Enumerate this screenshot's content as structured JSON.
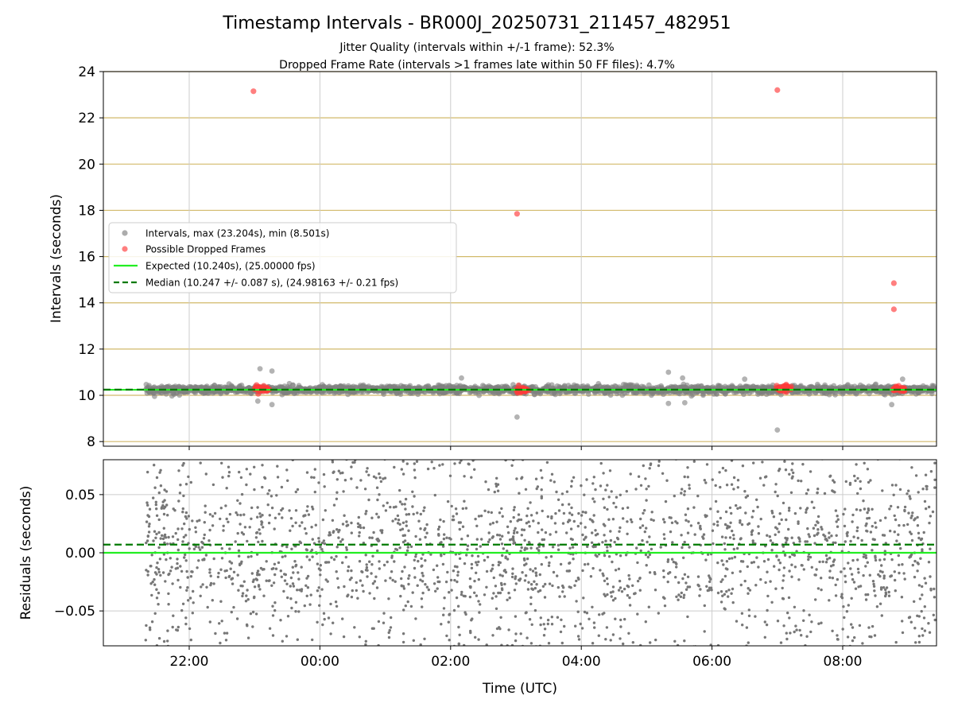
{
  "chart_data": [
    {
      "type": "scatter",
      "title": "Timestamp Intervals - BR000J_20250731_211457_482951",
      "subtitle_lines": [
        "Jitter Quality (intervals within +/-1 frame): 52.3%",
        "Dropped Frame Rate (intervals >1 frames late within 50 FF files): 4.7%"
      ],
      "xlabel": "",
      "ylabel": "Intervals (seconds)",
      "x_ticks": [
        "22:00",
        "00:00",
        "02:00",
        "04:00",
        "06:00",
        "08:00"
      ],
      "y_ticks": [
        "8",
        "10",
        "12",
        "14",
        "16",
        "18",
        "20",
        "22",
        "24"
      ],
      "ylim": [
        7.8,
        24
      ],
      "grid": true,
      "frame_lines_color": "#d2b96a",
      "legend_placement": "center-left",
      "series": [
        {
          "name": "Intervals, max (23.204s), min (8.501s)",
          "color": "#808080",
          "band": {
            "center": 10.245,
            "spread": 0.15,
            "x_range": [
              "21:20",
              "09:25"
            ]
          },
          "outliers": [
            {
              "x": "23:05",
              "y": 11.15
            },
            {
              "x": "23:16",
              "y": 11.05
            },
            {
              "x": "23:03",
              "y": 9.75
            },
            {
              "x": "23:16",
              "y": 9.6
            },
            {
              "x": "02:10",
              "y": 10.75
            },
            {
              "x": "03:01",
              "y": 9.06
            },
            {
              "x": "05:20",
              "y": 11.0
            },
            {
              "x": "05:33",
              "y": 10.75
            },
            {
              "x": "05:20",
              "y": 9.65
            },
            {
              "x": "05:35",
              "y": 9.68
            },
            {
              "x": "07:00",
              "y": 8.5
            },
            {
              "x": "06:30",
              "y": 10.7
            },
            {
              "x": "08:45",
              "y": 9.6
            },
            {
              "x": "08:55",
              "y": 10.7
            }
          ]
        },
        {
          "name": "Possible Dropped Frames",
          "color": "#ff3b3b",
          "points": [
            {
              "x": "22:59",
              "y": 23.15
            },
            {
              "x": "07:00",
              "y": 23.2
            },
            {
              "x": "03:01",
              "y": 17.85
            },
            {
              "x": "08:47",
              "y": 14.85
            },
            {
              "x": "08:47",
              "y": 13.72
            }
          ],
          "clusters": [
            {
              "x_range": [
                "23:00",
                "23:14"
              ],
              "center": 10.3
            },
            {
              "x_range": [
                "03:00",
                "03:12"
              ],
              "center": 10.24
            },
            {
              "x_range": [
                "06:59",
                "07:13"
              ],
              "center": 10.3
            },
            {
              "x_range": [
                "08:46",
                "08:57"
              ],
              "center": 10.28
            }
          ]
        },
        {
          "name": "Expected (10.240s), (25.00000 fps)",
          "color": "#22ee22",
          "style": "solid",
          "y": 10.24
        },
        {
          "name": "Median (10.247 +/- 0.087 s), (24.98163 +/- 0.21 fps)",
          "color": "#007a00",
          "style": "dashed",
          "y": 10.247
        }
      ]
    },
    {
      "type": "scatter",
      "xlabel": "Time (UTC)",
      "ylabel": "Residuals (seconds)",
      "x_ticks": [
        "22:00",
        "00:00",
        "02:00",
        "04:00",
        "06:00",
        "08:00"
      ],
      "y_ticks": [
        "0.05",
        "0.00",
        "−0.05"
      ],
      "ylim": [
        -0.08,
        0.08
      ],
      "grid": true,
      "series": [
        {
          "name": "",
          "color": "#777777",
          "spread": 0.08,
          "x_range": [
            "21:20",
            "09:25"
          ]
        },
        {
          "name": "",
          "color": "#22ee22",
          "style": "solid",
          "y": 0.0
        },
        {
          "name": "",
          "color": "#007a00",
          "style": "dashed",
          "y": 0.007
        }
      ]
    }
  ]
}
